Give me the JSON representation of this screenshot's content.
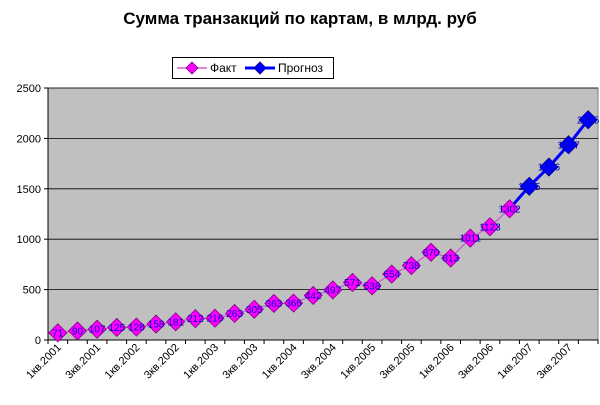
{
  "chart_data": {
    "type": "line",
    "title": "Сумма транзакций по картам, в млрд. руб",
    "xlabel": "",
    "ylabel": "",
    "ylim": [
      0,
      2500
    ],
    "yticks": [
      0,
      500,
      1000,
      1500,
      2000,
      2500
    ],
    "grid": true,
    "legend_position": "top-center",
    "categories": [
      "1кв.2001",
      "2кв.2001",
      "3кв.2001",
      "4кв.2001",
      "1кв.2002",
      "2кв.2002",
      "3кв.2002",
      "4кв.2002",
      "1кв.2003",
      "2кв.2003",
      "3кв.2003",
      "4кв.2003",
      "1кв.2004",
      "2кв.2004",
      "3кв.2004",
      "4кв.2004",
      "1кв.2005",
      "2кв.2005",
      "3кв.2005",
      "4кв.2005",
      "1кв.2006",
      "2кв.2006",
      "3кв.2006",
      "4кв.2006",
      "1кв.2007",
      "2кв.2007",
      "3кв.2007",
      "4кв.2007"
    ],
    "tick_labels": [
      "1кв.2001",
      "3кв.2001",
      "1кв.2002",
      "3кв.2002",
      "1кв.2003",
      "3кв.2003",
      "1кв.2004",
      "3кв.2004",
      "1кв.2005",
      "3кв.2005",
      "1кв.2006",
      "3кв.2006",
      "1кв.2007",
      "3кв.2007"
    ],
    "series": [
      {
        "name": "Факт",
        "color": "#ff00ff",
        "line_color": "#cc66cc",
        "values": [
          71,
          90,
          107,
          125,
          128,
          158,
          181,
          212,
          216,
          263,
          305,
          363,
          366,
          442,
          497,
          571,
          538,
          654,
          738,
          870,
          813,
          1011,
          1123,
          1302,
          null,
          null,
          null,
          null
        ]
      },
      {
        "name": "Прогноз",
        "color": "#0000ff",
        "line_color": "#0000ff",
        "values": [
          null,
          null,
          null,
          null,
          null,
          null,
          null,
          null,
          null,
          null,
          null,
          null,
          null,
          null,
          null,
          null,
          null,
          null,
          null,
          null,
          null,
          null,
          null,
          1302,
          1525,
          1716,
          1937,
          2185
        ]
      }
    ],
    "data_labels": {
      "Факт": [
        "71",
        "90",
        "107",
        "125",
        "128",
        "158",
        "181",
        "212",
        "216",
        "263",
        "305",
        "363",
        "366",
        "442",
        "497",
        "571",
        "538",
        "654",
        "738",
        "870",
        "813",
        "1011",
        "1123",
        "1302"
      ],
      "Прогноз": [
        "1525",
        "1716",
        "1937",
        "2185"
      ]
    },
    "plot_background": "#c0c0c0"
  }
}
